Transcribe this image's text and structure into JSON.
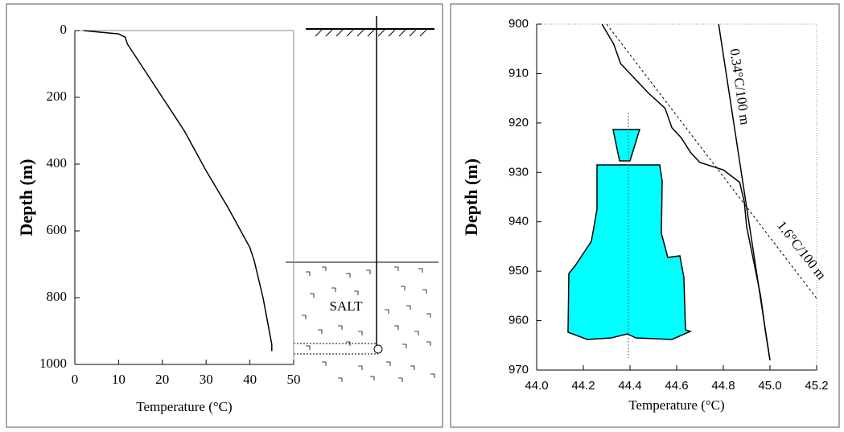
{
  "chart_data": [
    {
      "type": "line",
      "xlabel": "Temperature (°C)",
      "ylabel": "Depth (m)",
      "xlim": [
        0,
        50
      ],
      "xticks": [
        0,
        10,
        20,
        30,
        40,
        50
      ],
      "ylim": [
        0,
        1000
      ],
      "yticks": [
        0,
        200,
        400,
        600,
        800,
        1000
      ],
      "y_inverted": true,
      "series": [
        {
          "color": "#000000",
          "dashed": false,
          "x": [
            2,
            6,
            10,
            11.5,
            12,
            15,
            20,
            25,
            30,
            35,
            40,
            41,
            43,
            45,
            45
          ],
          "values": [
            0,
            5,
            10,
            20,
            40,
            100,
            200,
            300,
            420,
            530,
            650,
            690,
            800,
            940,
            960
          ]
        }
      ],
      "annotations": [
        "SALT"
      ]
    },
    {
      "type": "line",
      "xlabel": "Temperature (°C)",
      "ylabel": "Depth (m)",
      "xlim": [
        44,
        45.2
      ],
      "xticks": [
        {
          "value": 44,
          "label": "44.0"
        },
        44.2,
        44.4,
        44.6,
        44.8,
        {
          "value": 45,
          "label": "45.0"
        },
        45.2
      ],
      "ylim": [
        900,
        970
      ],
      "yticks": [
        900,
        910,
        920,
        930,
        940,
        950,
        960,
        970
      ],
      "y_inverted": true,
      "series": [
        {
          "color": "#000000",
          "dashed": false,
          "x": [
            44.28,
            44.33,
            44.36,
            44.42,
            44.48,
            44.55,
            44.58,
            44.62,
            44.66,
            44.7,
            44.8,
            44.87,
            44.89,
            44.9,
            44.93,
            44.96,
            44.98,
            45.0
          ],
          "values": [
            900,
            904,
            908,
            911,
            914,
            917,
            921,
            923,
            926,
            928,
            929.5,
            932,
            936,
            941,
            948,
            955,
            962,
            968
          ]
        },
        {
          "color": "#000000",
          "dashed": true,
          "x": [
            44.3,
            45.2
          ],
          "values": [
            900,
            955.5
          ]
        },
        {
          "color": "#000000",
          "dashed": false,
          "x": [
            44.78,
            45.0
          ],
          "values": [
            900,
            968
          ]
        }
      ],
      "annotations": [
        "0.34°C/100 m",
        "1.6°C/100 m"
      ]
    }
  ]
}
